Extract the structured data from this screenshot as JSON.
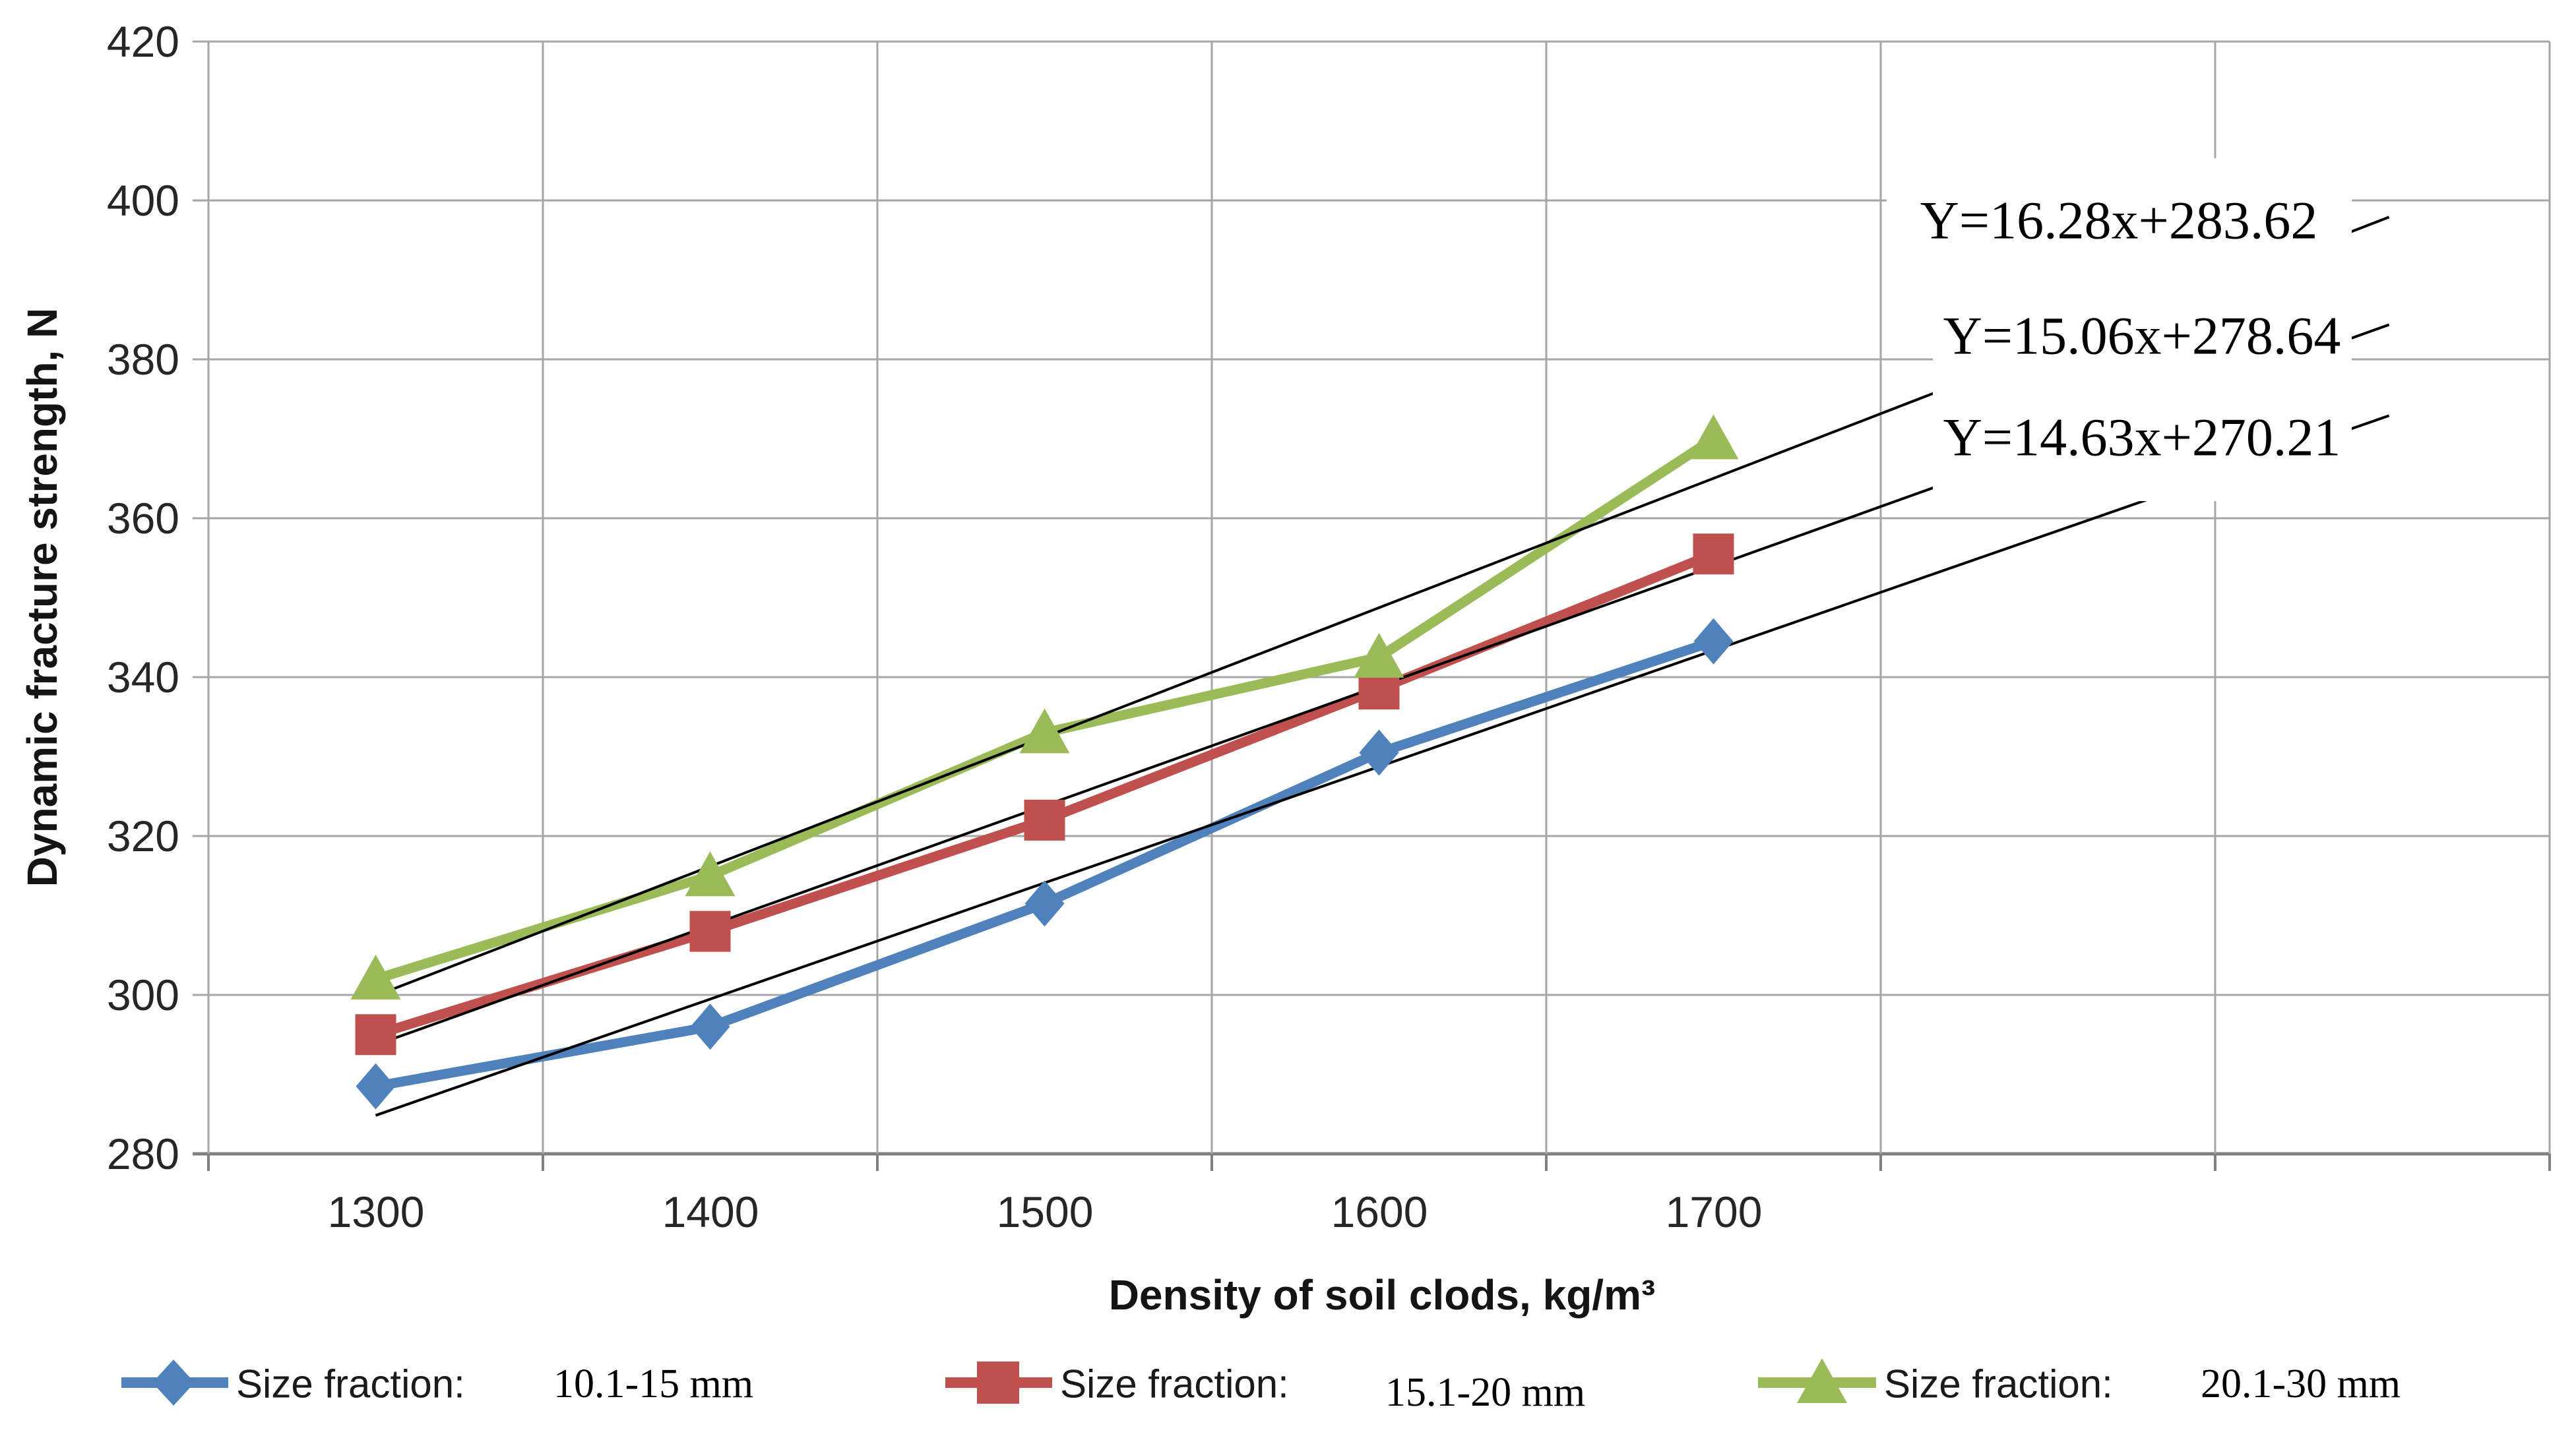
{
  "chart_data": {
    "type": "line",
    "title": "",
    "xlabel": "Density of soil clods, kg/m³",
    "ylabel": "Dynamic fracture strength, N",
    "categories": [
      1300,
      1400,
      1500,
      1600,
      1700
    ],
    "x_tick_labels": [
      "1300",
      "1400",
      "1500",
      "1600",
      "1700"
    ],
    "y_ticks": [
      420,
      400,
      380,
      360,
      340,
      320,
      300,
      280
    ],
    "ylim": [
      280,
      420
    ],
    "y_step": 20,
    "grid": true,
    "legend_position": "bottom",
    "series": [
      {
        "name": "Size fraction: 10.1-15 mm",
        "legend_label": "Size fraction:",
        "legend_size": "10.1-15 mm",
        "marker": "diamond",
        "color": "#4F81BD",
        "values": [
          288.5,
          296,
          311.5,
          330.5,
          344.5
        ]
      },
      {
        "name": "Size fraction: 15.1-20 mm",
        "legend_label": "Size fraction:",
        "legend_size": "15.1-20 mm",
        "marker": "square",
        "color": "#C0504D",
        "values": [
          295,
          308,
          322,
          338.5,
          355.5
        ]
      },
      {
        "name": "Size fraction: 20.1-30 mm",
        "legend_label": "Size fraction:",
        "legend_size": "20.1-30 mm",
        "marker": "triangle",
        "color": "#9BBB59",
        "values": [
          302,
          315,
          333,
          342.5,
          370
        ]
      }
    ],
    "trendlines": [
      {
        "equation": "Y=16.28x+283.62",
        "slope": 16.28,
        "intercept": 283.62,
        "series_index": 2,
        "color": "#000000"
      },
      {
        "equation": "Y=15.06x+278.64",
        "slope": 15.06,
        "intercept": 278.64,
        "series_index": 1,
        "color": "#000000"
      },
      {
        "equation": "Y=14.63x+270.21",
        "slope": 14.63,
        "intercept": 270.21,
        "series_index": 0,
        "color": "#000000"
      }
    ],
    "colors": {
      "gridline": "#A6A6A6",
      "axis_line": "#808080",
      "tick_label": "#262626",
      "trendline": "#000000",
      "background": "#FFFFFF"
    }
  }
}
